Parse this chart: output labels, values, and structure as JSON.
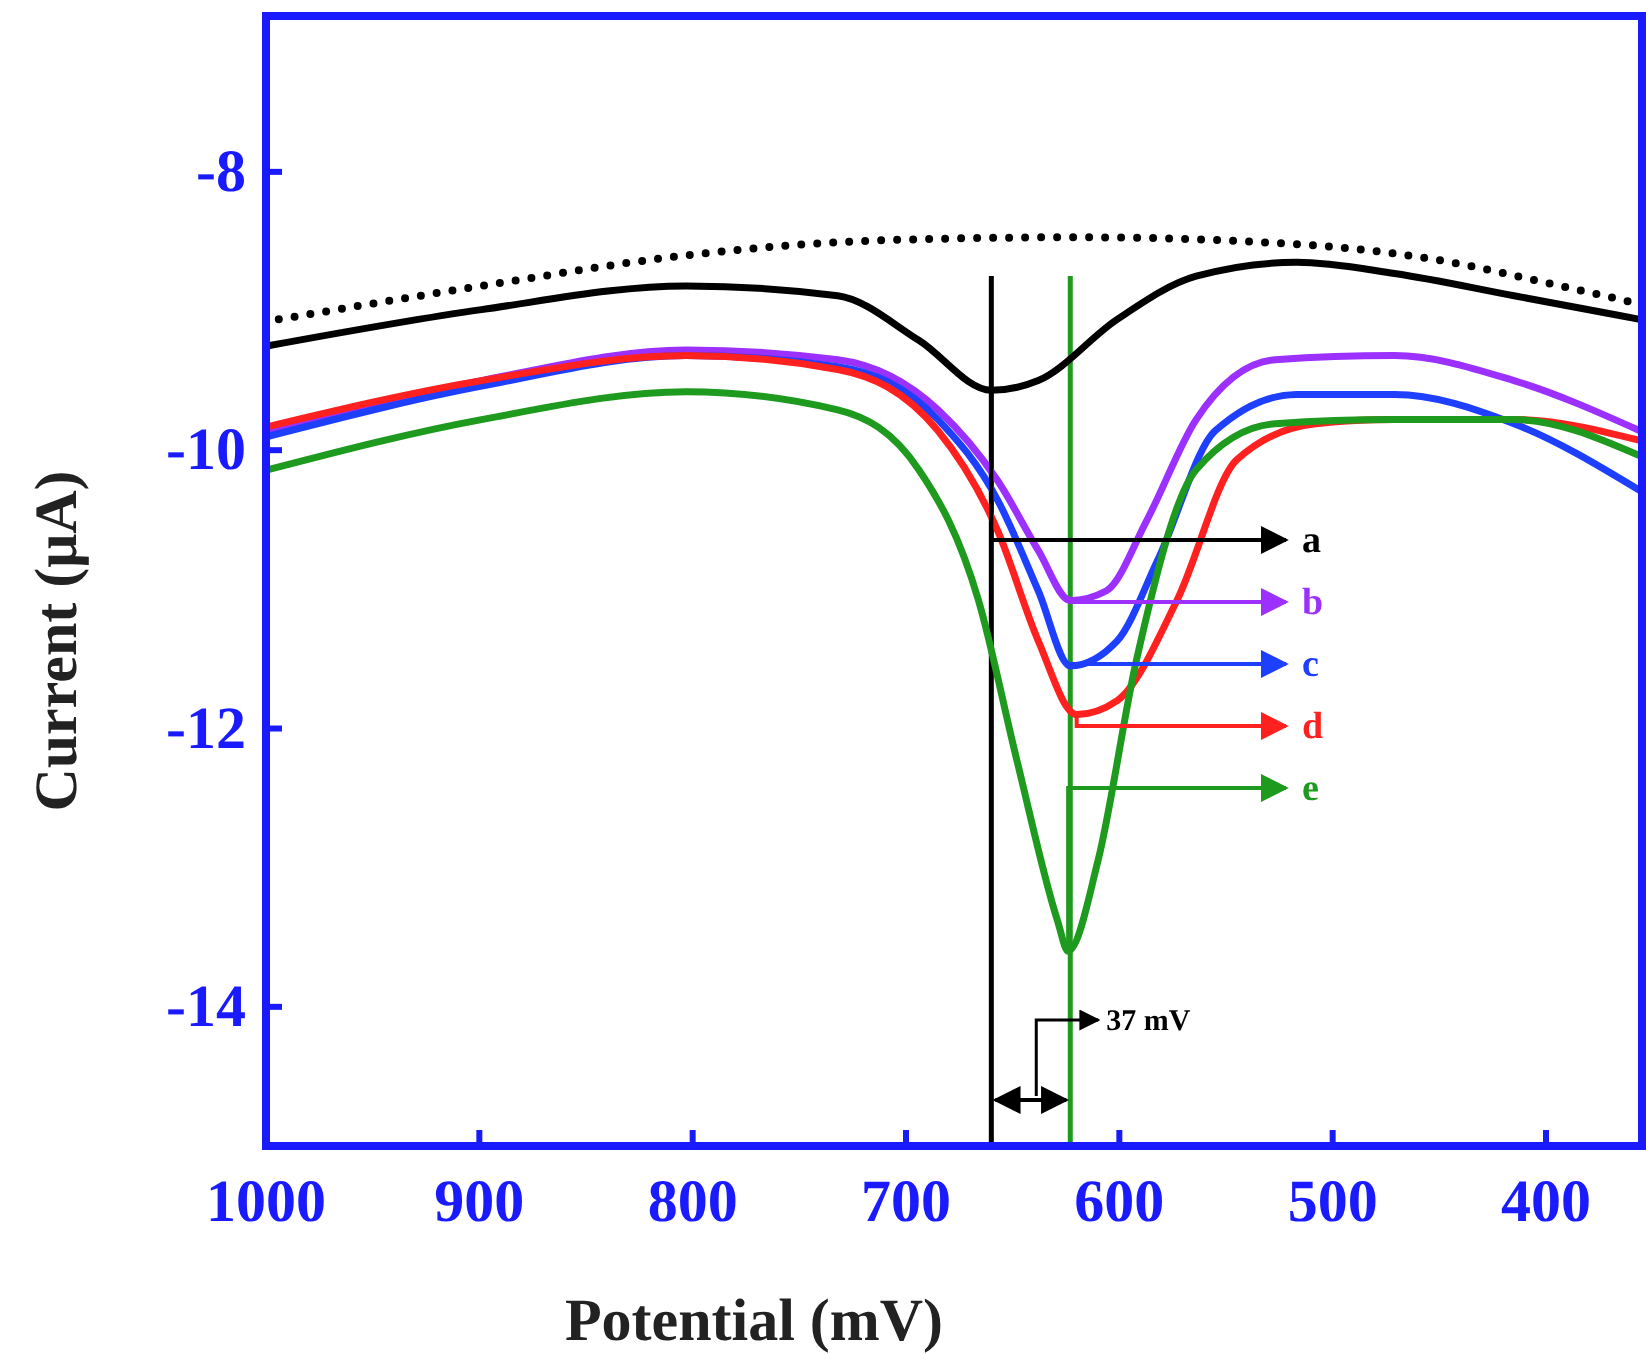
{
  "chart_data": {
    "type": "line",
    "xlabel": "Potential (mV)",
    "ylabel": "Current (μA)",
    "xlim": [
      1000,
      355
    ],
    "xticks": [
      1000,
      900,
      800,
      700,
      600,
      500,
      400
    ],
    "ylim": [
      -15,
      -6.88
    ],
    "yticks": [
      -14,
      -12,
      -10,
      -8
    ],
    "series": [
      {
        "color": "#000000",
        "line_style": "dotted",
        "x": [
          994,
          899,
          803,
          708,
          620,
          517,
          452,
          396,
          356
        ],
        "values": [
          -9.06,
          -8.82,
          -8.6,
          -8.49,
          -8.47,
          -8.52,
          -8.63,
          -8.81,
          -8.95
        ]
      },
      {
        "name": "a",
        "color": "#000000",
        "x": [
          999,
          899,
          803,
          732,
          694,
          660,
          638,
          601,
          564,
          517,
          471,
          415,
          356
        ],
        "values": [
          -9.25,
          -8.99,
          -8.82,
          -8.89,
          -9.21,
          -9.57,
          -9.5,
          -9.06,
          -8.75,
          -8.65,
          -8.73,
          -8.89,
          -9.06
        ]
      },
      {
        "name": "b",
        "color": "#9b30ff",
        "x": [
          999,
          899,
          803,
          732,
          685,
          657,
          638,
          623,
          606,
          587,
          564,
          527,
          471,
          415,
          356
        ],
        "values": [
          -9.86,
          -9.5,
          -9.28,
          -9.35,
          -9.71,
          -10.22,
          -10.72,
          -11.08,
          -11.01,
          -10.5,
          -9.78,
          -9.35,
          -9.32,
          -9.5,
          -9.86
        ]
      },
      {
        "name": "c",
        "color": "#1f3fff",
        "x": [
          999,
          899,
          803,
          732,
          685,
          657,
          638,
          623,
          601,
          582,
          555,
          517,
          471,
          415,
          356
        ],
        "values": [
          -9.9,
          -9.54,
          -9.32,
          -9.4,
          -9.78,
          -10.36,
          -11.01,
          -11.55,
          -11.37,
          -10.79,
          -9.86,
          -9.6,
          -9.6,
          -9.81,
          -10.29
        ]
      },
      {
        "name": "d",
        "color": "#ff2020",
        "x": [
          999,
          899,
          803,
          732,
          685,
          657,
          638,
          620,
          601,
          573,
          545,
          508,
          471,
          415,
          356
        ],
        "values": [
          -9.83,
          -9.5,
          -9.32,
          -9.42,
          -9.86,
          -10.58,
          -11.37,
          -11.9,
          -11.8,
          -11.08,
          -10.07,
          -9.81,
          -9.78,
          -9.78,
          -9.93
        ]
      },
      {
        "name": "e",
        "color": "#1e9a1e",
        "x": [
          999,
          899,
          803,
          732,
          694,
          666,
          648,
          629,
          624,
          610,
          592,
          564,
          527,
          471,
          415,
          356
        ],
        "values": [
          -10.14,
          -9.78,
          -9.58,
          -9.71,
          -10.14,
          -11.08,
          -12.23,
          -13.38,
          -13.6,
          -12.95,
          -11.51,
          -10.14,
          -9.81,
          -9.78,
          -9.78,
          -10.04
        ]
      }
    ],
    "ref_lines": [
      {
        "axis": "x",
        "value": 660,
        "color": "#000000"
      },
      {
        "axis": "x",
        "value": 623,
        "color": "#1e9a1e"
      }
    ],
    "annotations": [
      "37 mV"
    ],
    "line_style": "solid",
    "grid": false
  }
}
